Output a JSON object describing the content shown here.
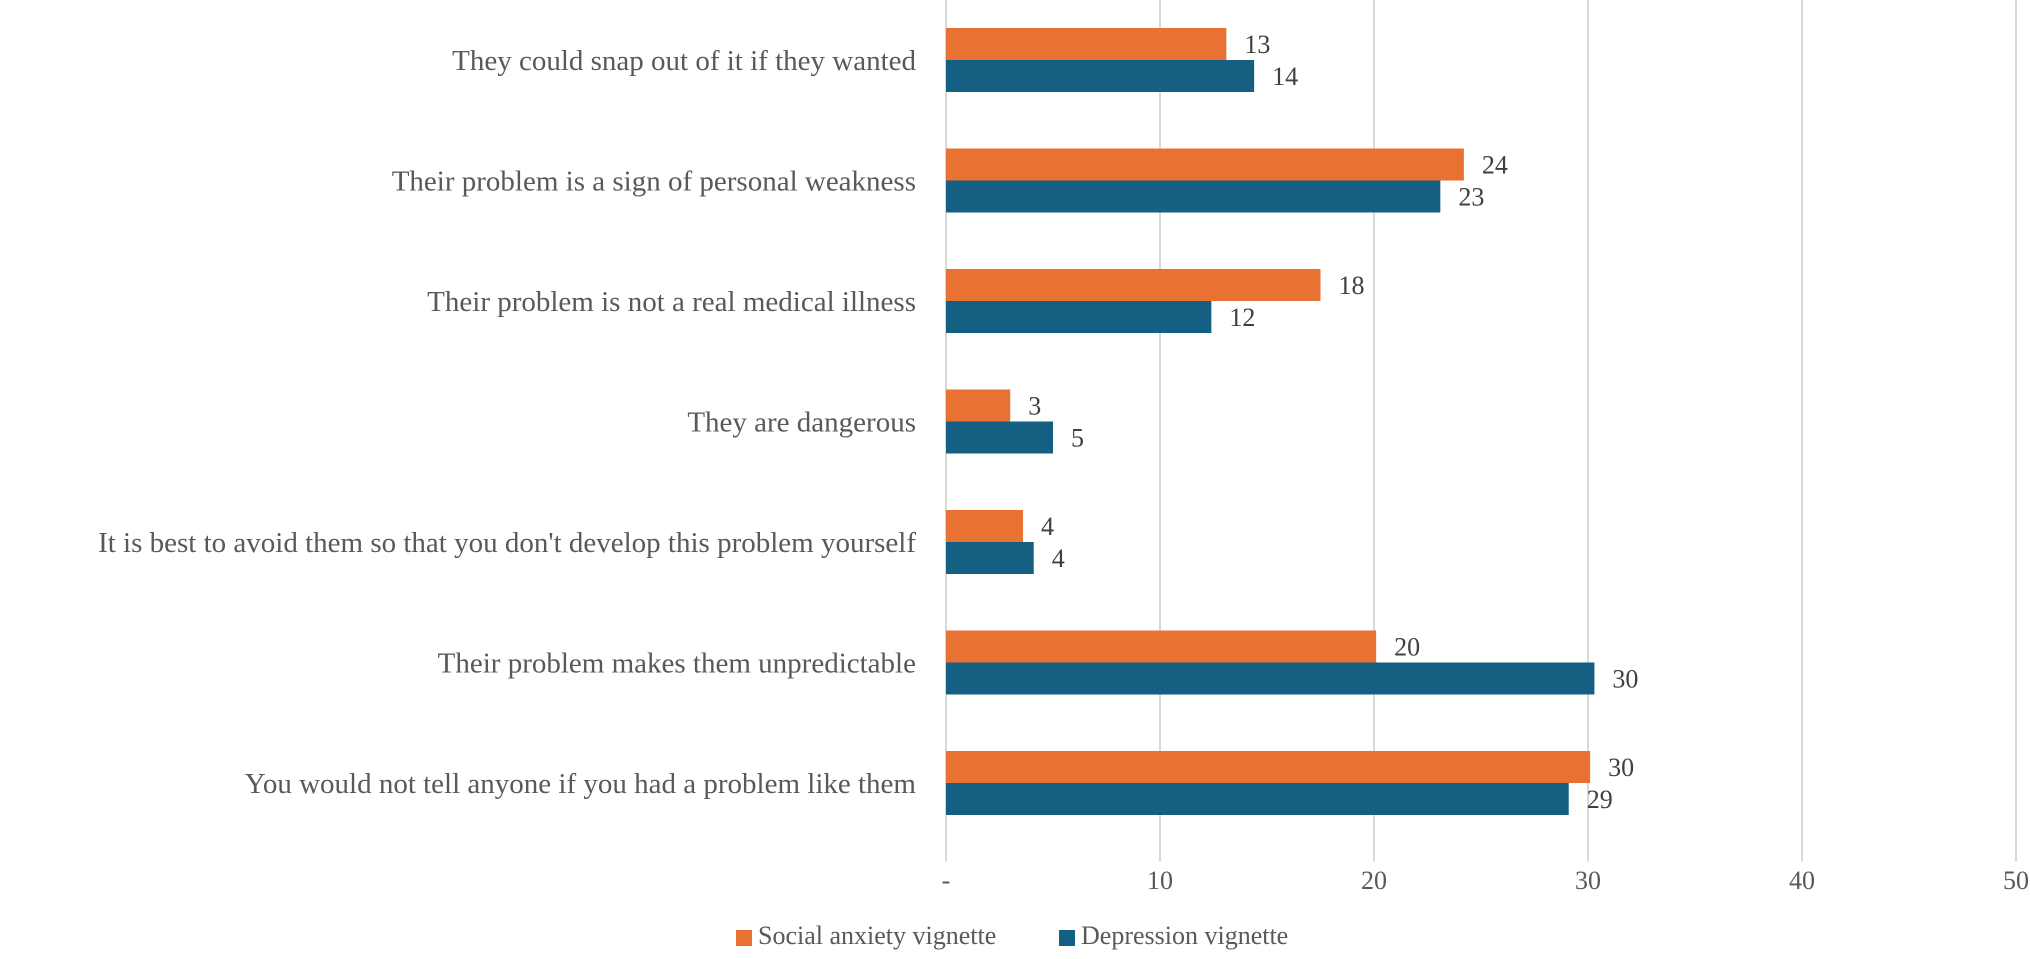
{
  "chart_data": {
    "type": "bar",
    "orientation": "horizontal",
    "categories": [
      "They could snap out of it if they wanted",
      "Their problem is a sign of personal weakness",
      "Their problem is not a real medical illness",
      "They are dangerous",
      "It is best to avoid them so that you don't develop this problem yourself",
      "Their problem makes them unpredictable",
      "You would not tell anyone if you had a problem like them"
    ],
    "series": [
      {
        "name": "Social anxiety vignette",
        "color": "#E97132",
        "values": [
          13.1,
          24.2,
          17.5,
          3.0,
          3.6,
          20.1,
          30.1
        ],
        "labels": [
          "13",
          "24",
          "18",
          "3",
          "4",
          "20",
          "30"
        ]
      },
      {
        "name": "Depression vignette",
        "color": "#156082",
        "values": [
          14.4,
          23.1,
          12.4,
          5.0,
          4.1,
          30.3,
          29.1
        ],
        "labels": [
          "14",
          "23",
          "12",
          "5",
          "4",
          "30",
          "29"
        ]
      }
    ],
    "xlim": [
      0,
      50
    ],
    "xticks": [
      0,
      10,
      20,
      30,
      40,
      50
    ],
    "xtick_labels": [
      "-",
      "10",
      "20",
      "30",
      "40",
      "50"
    ],
    "grid": true,
    "legend": "bottom",
    "title": "",
    "xlabel": "",
    "ylabel": ""
  }
}
